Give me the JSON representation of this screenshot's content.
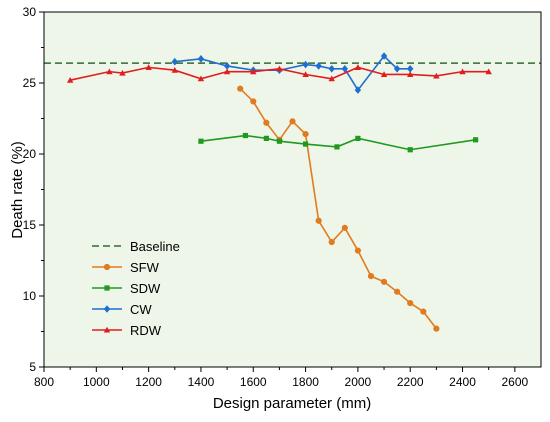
{
  "chart_data": {
    "type": "line",
    "title": "",
    "xlabel": "Design parameter (mm)",
    "ylabel": "Death rate (%)",
    "xlim": [
      800,
      2700
    ],
    "ylim": [
      5,
      30
    ],
    "x_ticks": [
      800,
      1000,
      1200,
      1400,
      1600,
      1800,
      2000,
      2200,
      2400,
      2600
    ],
    "y_ticks": [
      5,
      10,
      15,
      20,
      25,
      30
    ],
    "legend_position": "lower-left",
    "grid": false,
    "background_color": "#eef6ea",
    "baseline": {
      "name": "Baseline",
      "y": 26.4,
      "color": "#2f6b2f",
      "style": "dashed"
    },
    "series": [
      {
        "name": "SFW",
        "color": "#e07b1f",
        "marker": "circle",
        "x": [
          1550,
          1600,
          1650,
          1700,
          1750,
          1800,
          1850,
          1900,
          1950,
          2000,
          2050,
          2100,
          2150,
          2200,
          2250,
          2300
        ],
        "y": [
          24.6,
          23.7,
          22.2,
          21.0,
          22.3,
          21.4,
          15.3,
          13.8,
          14.8,
          13.2,
          11.4,
          11.0,
          10.3,
          9.5,
          8.9,
          7.7
        ]
      },
      {
        "name": "SDW",
        "color": "#1f9a1f",
        "marker": "square",
        "x": [
          1400,
          1570,
          1650,
          1700,
          1800,
          1920,
          2000,
          2200,
          2450
        ],
        "y": [
          20.9,
          21.3,
          21.1,
          20.9,
          20.7,
          20.5,
          21.1,
          20.3,
          21.0
        ]
      },
      {
        "name": "CW",
        "color": "#1f6fd1",
        "marker": "diamond",
        "x": [
          1300,
          1400,
          1500,
          1600,
          1700,
          1800,
          1850,
          1900,
          1950,
          2000,
          2100,
          2150,
          2200
        ],
        "y": [
          26.5,
          26.7,
          26.2,
          25.9,
          25.9,
          26.3,
          26.2,
          26.0,
          26.0,
          24.5,
          26.9,
          26.0,
          26.0
        ]
      },
      {
        "name": "RDW",
        "color": "#e01e1e",
        "marker": "triangle",
        "x": [
          900,
          1050,
          1100,
          1200,
          1300,
          1400,
          1500,
          1600,
          1700,
          1800,
          1900,
          2000,
          2100,
          2200,
          2300,
          2400,
          2500
        ],
        "y": [
          25.2,
          25.8,
          25.7,
          26.1,
          25.9,
          25.3,
          25.8,
          25.8,
          26.0,
          25.6,
          25.3,
          26.1,
          25.6,
          25.6,
          25.5,
          25.8,
          25.8
        ]
      }
    ]
  }
}
